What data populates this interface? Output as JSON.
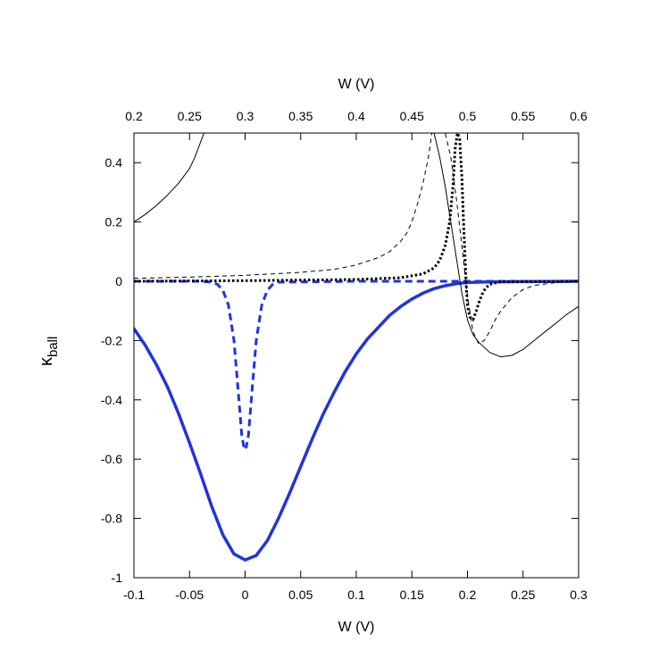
{
  "chart_data": {
    "type": "line",
    "xlabel_bottom": "W (V)",
    "xlabel_top": "W (V)",
    "ylabel": {
      "symbol": "κ",
      "subscript": "ball"
    },
    "xlim_bottom": [
      -0.1,
      0.3
    ],
    "xlim_top": [
      0.2,
      0.6
    ],
    "ylim": [
      -1,
      0.5
    ],
    "bottom_ticks": [
      "-0.1",
      "-0.05",
      "0",
      "0.05",
      "0.1",
      "0.15",
      "0.2",
      "0.25",
      "0.3"
    ],
    "top_ticks": [
      "0.2",
      "0.25",
      "0.3",
      "0.35",
      "0.4",
      "0.45",
      "0.5",
      "0.55",
      "0.6"
    ],
    "y_ticks": [
      "-1",
      "-0.8",
      "-0.6",
      "-0.4",
      "-0.2",
      "0",
      "0.2",
      "0.4"
    ],
    "grid": false,
    "legend": "none",
    "series": [
      {
        "axis": "bottom",
        "style": "solid-thick",
        "color": "#2233dd",
        "x": [
          -0.1,
          -0.09,
          -0.08,
          -0.07,
          -0.06,
          -0.05,
          -0.04,
          -0.03,
          -0.02,
          -0.01,
          0,
          0.01,
          0.02,
          0.03,
          0.04,
          0.05,
          0.06,
          0.07,
          0.08,
          0.09,
          0.1,
          0.11,
          0.12,
          0.13,
          0.14,
          0.15,
          0.16,
          0.17,
          0.18,
          0.19,
          0.2,
          0.22,
          0.25,
          0.3
        ],
        "y": [
          -0.16,
          -0.215,
          -0.28,
          -0.355,
          -0.445,
          -0.545,
          -0.65,
          -0.76,
          -0.855,
          -0.92,
          -0.94,
          -0.925,
          -0.875,
          -0.8,
          -0.715,
          -0.625,
          -0.535,
          -0.45,
          -0.375,
          -0.305,
          -0.245,
          -0.195,
          -0.155,
          -0.115,
          -0.085,
          -0.06,
          -0.04,
          -0.025,
          -0.015,
          -0.008,
          -0.004,
          -0.002,
          -0.001,
          0
        ]
      },
      {
        "axis": "bottom",
        "style": "dashed-thick",
        "color": "#2233dd",
        "x": [
          -0.1,
          -0.04,
          -0.03,
          -0.025,
          -0.02,
          -0.015,
          -0.01,
          -0.006,
          -0.003,
          -0.001,
          0,
          0.001,
          0.003,
          0.006,
          0.01,
          0.015,
          0.02,
          0.025,
          0.03,
          0.1,
          0.3
        ],
        "y": [
          0,
          0,
          -0.003,
          -0.01,
          -0.03,
          -0.08,
          -0.2,
          -0.38,
          -0.52,
          -0.56,
          -0.55,
          -0.56,
          -0.52,
          -0.38,
          -0.2,
          -0.08,
          -0.03,
          -0.01,
          -0.003,
          0,
          0
        ]
      },
      {
        "axis": "top",
        "style": "solid-thin",
        "color": "#000000",
        "x": [
          0.2,
          0.21,
          0.22,
          0.23,
          0.24,
          0.25,
          0.255,
          0.263,
          0.47,
          0.475,
          0.48,
          0.485,
          0.49,
          0.495,
          0.5,
          0.505,
          0.51,
          0.52,
          0.53,
          0.54,
          0.55,
          0.56,
          0.57,
          0.58,
          0.59,
          0.6
        ],
        "y": [
          0.2,
          0.225,
          0.255,
          0.29,
          0.33,
          0.38,
          0.42,
          0.5,
          0.5,
          0.42,
          0.32,
          0.2,
          0.08,
          -0.04,
          -0.13,
          -0.18,
          -0.205,
          -0.24,
          -0.255,
          -0.25,
          -0.23,
          -0.2,
          -0.17,
          -0.14,
          -0.11,
          -0.085
        ]
      },
      {
        "axis": "top",
        "style": "dashed-thin",
        "color": "#000000",
        "x": [
          0.2,
          0.25,
          0.3,
          0.35,
          0.38,
          0.4,
          0.42,
          0.43,
          0.44,
          0.445,
          0.45,
          0.455,
          0.46,
          0.465,
          0.468,
          0.48,
          0.485,
          0.49,
          0.495,
          0.5,
          0.505,
          0.51,
          0.515,
          0.52,
          0.525,
          0.53,
          0.54,
          0.55,
          0.56,
          0.58,
          0.6
        ],
        "y": [
          0.01,
          0.014,
          0.02,
          0.03,
          0.04,
          0.055,
          0.08,
          0.1,
          0.135,
          0.16,
          0.2,
          0.26,
          0.33,
          0.42,
          0.5,
          0.5,
          0.42,
          0.28,
          0.12,
          -0.05,
          -0.17,
          -0.21,
          -0.2,
          -0.17,
          -0.13,
          -0.1,
          -0.055,
          -0.028,
          -0.014,
          -0.004,
          0
        ]
      },
      {
        "axis": "top",
        "style": "dotted",
        "color": "#000000",
        "x": [
          0.2,
          0.3,
          0.4,
          0.44,
          0.46,
          0.47,
          0.475,
          0.48,
          0.484,
          0.487,
          0.489,
          0.491,
          0.493,
          0.495,
          0.497,
          0.499,
          0.5,
          0.502,
          0.505,
          0.508,
          0.51,
          0.513,
          0.516,
          0.52,
          0.53,
          0.6
        ],
        "y": [
          0,
          0.002,
          0.006,
          0.012,
          0.025,
          0.045,
          0.07,
          0.12,
          0.2,
          0.32,
          0.45,
          0.5,
          0.48,
          0.35,
          0.15,
          -0.02,
          -0.08,
          -0.12,
          -0.13,
          -0.1,
          -0.075,
          -0.045,
          -0.025,
          -0.01,
          -0.002,
          0
        ]
      }
    ]
  }
}
